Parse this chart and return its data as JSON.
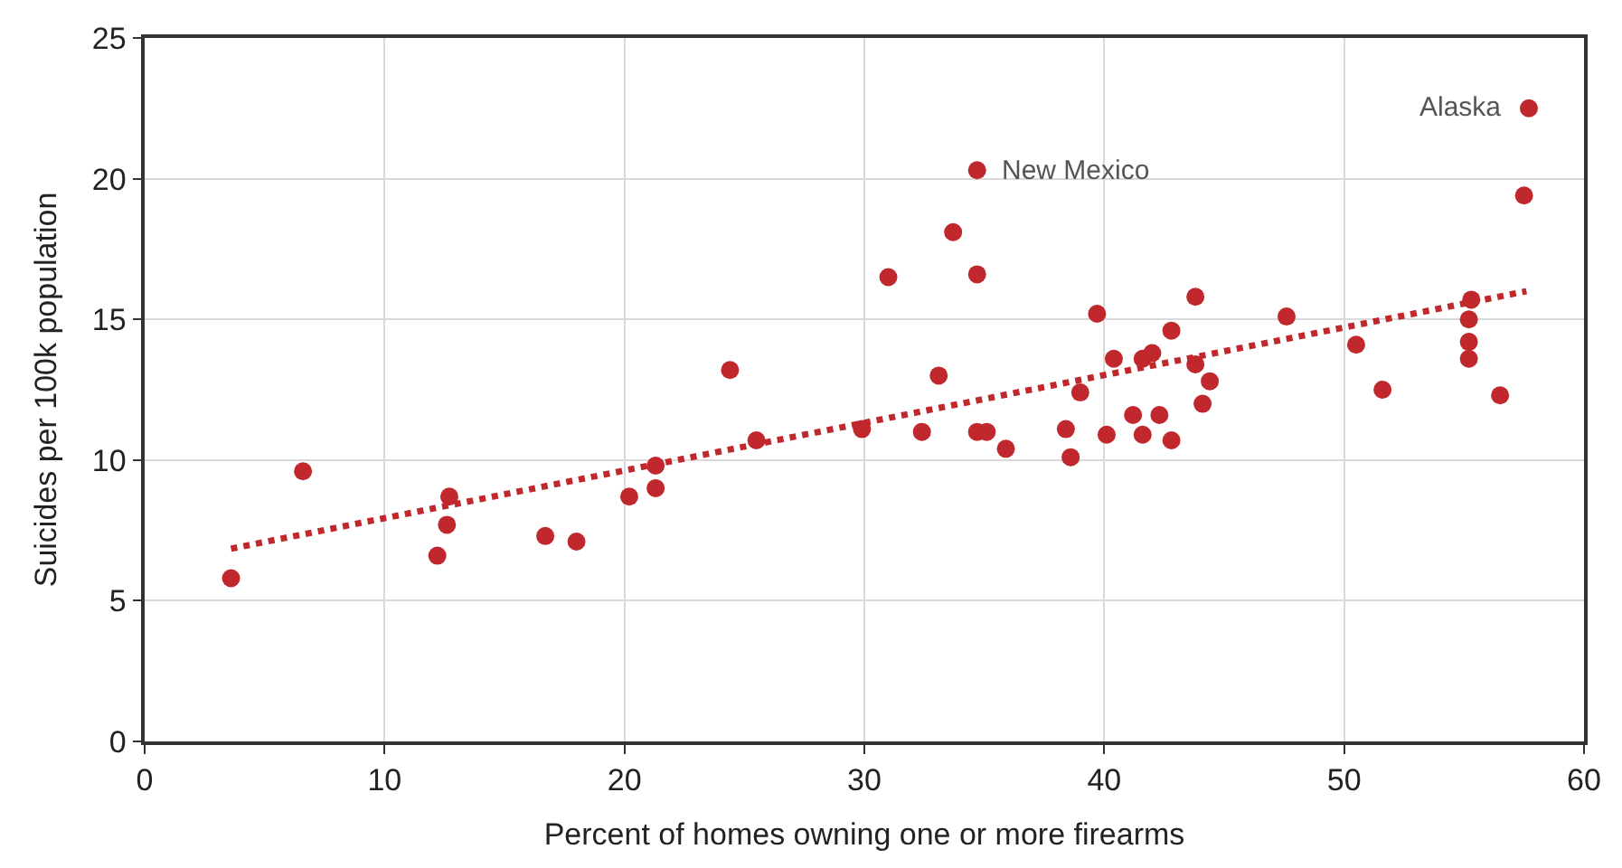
{
  "chart_data": {
    "type": "scatter",
    "xlabel": "Percent of homes owning one or more firearms",
    "ylabel": "Suicides per 100k population",
    "xlim": [
      0,
      60
    ],
    "xticks": [
      0,
      10,
      20,
      30,
      40,
      50,
      60
    ],
    "ylim": [
      0,
      25
    ],
    "yticks": [
      0,
      5,
      10,
      15,
      20,
      25
    ],
    "grid": true,
    "series": [
      {
        "marker": "circle",
        "color": "#c0282d",
        "x": [
          3.6,
          6.6,
          12.2,
          12.6,
          12.7,
          16.7,
          18.0,
          20.2,
          21.3,
          21.3,
          24.4,
          25.5,
          29.9,
          31.0,
          32.4,
          33.1,
          33.7,
          34.7,
          34.7,
          34.7,
          35.1,
          35.9,
          38.4,
          38.6,
          39.0,
          39.7,
          40.1,
          40.4,
          41.2,
          41.6,
          41.6,
          42.0,
          42.3,
          42.8,
          42.8,
          43.8,
          43.8,
          44.1,
          44.4,
          47.6,
          50.5,
          51.6,
          55.3,
          55.2,
          55.2,
          55.2,
          56.5,
          57.5,
          57.7
        ],
        "values": [
          5.8,
          9.6,
          6.6,
          7.7,
          8.7,
          7.3,
          7.1,
          8.7,
          9.0,
          9.8,
          13.2,
          10.7,
          11.1,
          16.5,
          11.0,
          13.0,
          18.1,
          20.3,
          16.6,
          11.0,
          11.0,
          10.4,
          11.1,
          10.1,
          12.4,
          15.2,
          10.9,
          13.6,
          11.6,
          10.9,
          13.6,
          13.8,
          11.6,
          10.7,
          14.6,
          15.8,
          13.4,
          12.0,
          12.8,
          15.1,
          14.1,
          12.5,
          15.7,
          15.0,
          14.2,
          13.6,
          12.3,
          19.4,
          22.5
        ]
      },
      {
        "type": "line",
        "color": "#c0282d",
        "line_style": "dotted",
        "x": [
          3.6,
          57.6
        ],
        "values": [
          6.85,
          16.0
        ]
      }
    ],
    "annotations": [
      {
        "text": "New Mexico",
        "x": 34.7,
        "y": 20.3
      },
      {
        "text": "Alaska",
        "x": 57.7,
        "y": 22.5
      }
    ]
  }
}
